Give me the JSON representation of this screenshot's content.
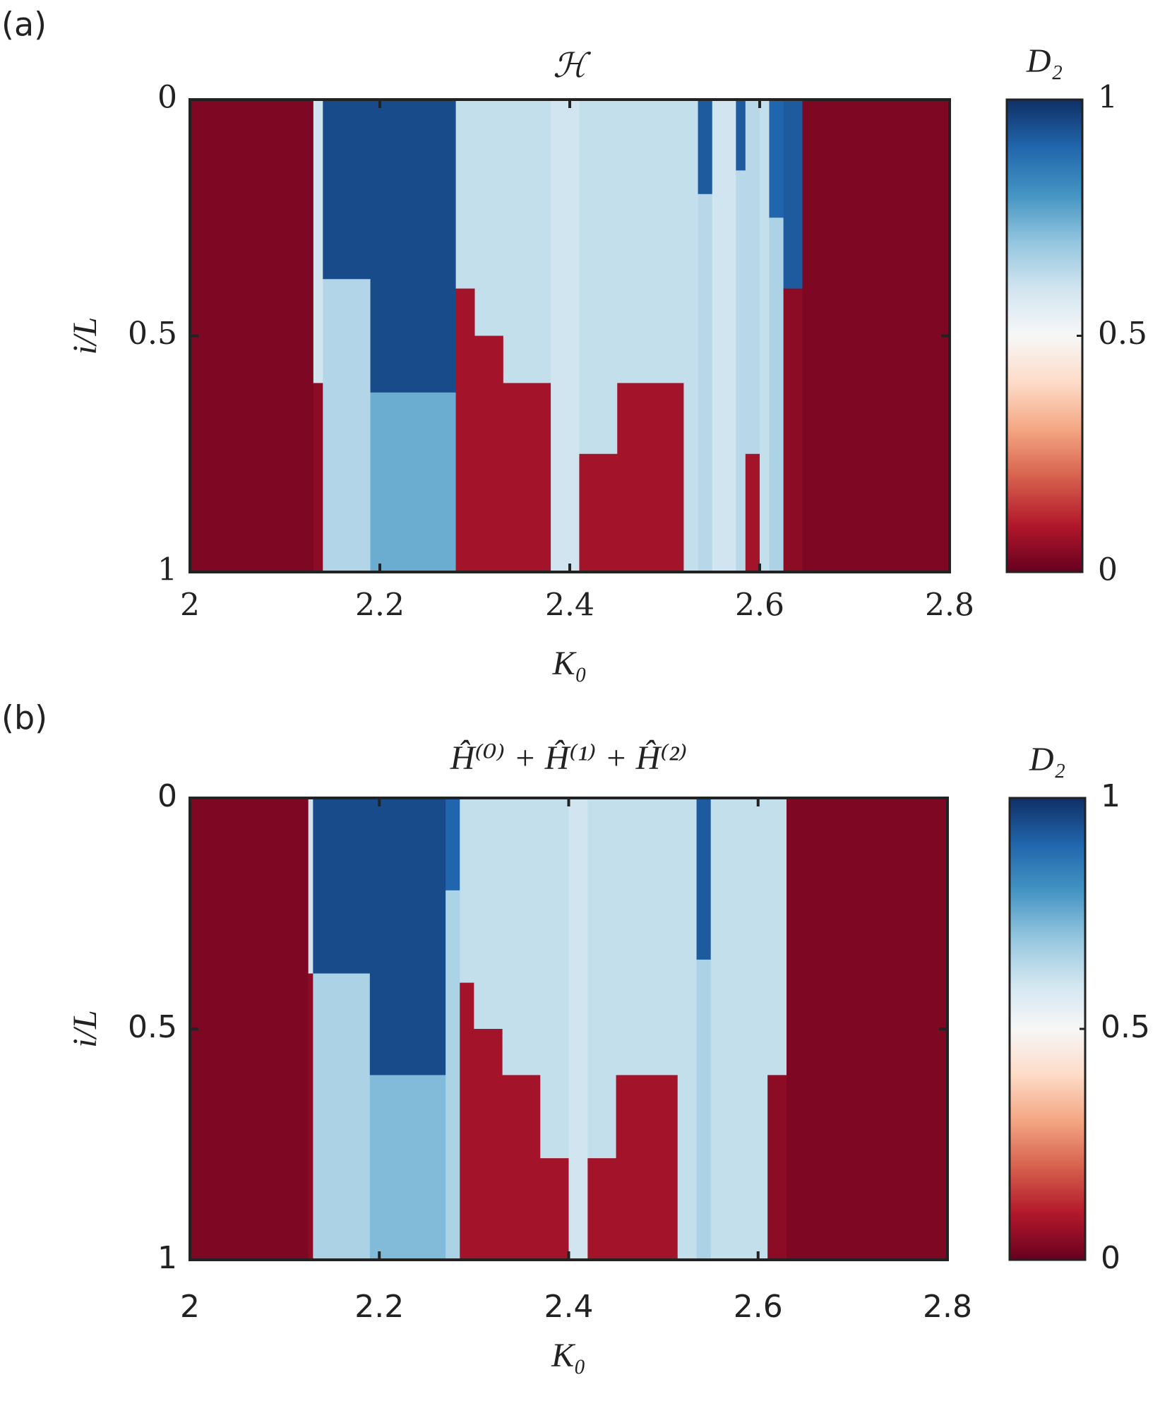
{
  "chart_data": [
    {
      "type": "heatmap",
      "panel_label": "(a)",
      "title": "ℋ",
      "x_label": "K₀",
      "y_label": "i/L",
      "colorbar_label": "D₂",
      "xlim": [
        2,
        2.8
      ],
      "xticks": [
        2,
        2.2,
        2.4,
        2.6,
        2.8
      ],
      "ylim": [
        0,
        1
      ],
      "y_reversed": true,
      "yticks": [
        0,
        0.5,
        1
      ],
      "clim": [
        0,
        1
      ],
      "cticks": [
        0,
        0.5,
        1
      ],
      "colormap": [
        "#67001f",
        "#b2182b",
        "#d6604d",
        "#f4a582",
        "#fddbc7",
        "#f7f7f7",
        "#d1e5f0",
        "#92c5de",
        "#4393c3",
        "#2166ac",
        "#0f2f66"
      ],
      "cells": [
        {
          "x": [
            2,
            2.13
          ],
          "y": [
            0,
            1
          ],
          "value": 0.03
        },
        {
          "x": [
            2.13,
            2.14
          ],
          "y": [
            0,
            0.6
          ],
          "value": 0.6
        },
        {
          "x": [
            2.13,
            2.14
          ],
          "y": [
            0.6,
            1
          ],
          "value": 0.05
        },
        {
          "x": [
            2.14,
            2.19
          ],
          "y": [
            0,
            0.38
          ],
          "value": 0.95
        },
        {
          "x": [
            2.14,
            2.19
          ],
          "y": [
            0.38,
            1
          ],
          "value": 0.65
        },
        {
          "x": [
            2.19,
            2.28
          ],
          "y": [
            0,
            0.62
          ],
          "value": 0.95
        },
        {
          "x": [
            2.19,
            2.28
          ],
          "y": [
            0.62,
            1
          ],
          "value": 0.75
        },
        {
          "x": [
            2.28,
            2.3
          ],
          "y": [
            0,
            0.4
          ],
          "value": 0.62
        },
        {
          "x": [
            2.28,
            2.3
          ],
          "y": [
            0.4,
            1
          ],
          "value": 0.08
        },
        {
          "x": [
            2.3,
            2.33
          ],
          "y": [
            0,
            0.5
          ],
          "value": 0.62
        },
        {
          "x": [
            2.3,
            2.33
          ],
          "y": [
            0.5,
            1
          ],
          "value": 0.08
        },
        {
          "x": [
            2.33,
            2.38
          ],
          "y": [
            0,
            0.6
          ],
          "value": 0.62
        },
        {
          "x": [
            2.33,
            2.38
          ],
          "y": [
            0.6,
            1
          ],
          "value": 0.08
        },
        {
          "x": [
            2.38,
            2.41
          ],
          "y": [
            0,
            1
          ],
          "value": 0.6
        },
        {
          "x": [
            2.41,
            2.45
          ],
          "y": [
            0,
            0.75
          ],
          "value": 0.62
        },
        {
          "x": [
            2.41,
            2.45
          ],
          "y": [
            0.75,
            1
          ],
          "value": 0.08
        },
        {
          "x": [
            2.45,
            2.52
          ],
          "y": [
            0,
            0.6
          ],
          "value": 0.62
        },
        {
          "x": [
            2.45,
            2.52
          ],
          "y": [
            0.6,
            1
          ],
          "value": 0.08
        },
        {
          "x": [
            2.52,
            2.535
          ],
          "y": [
            0,
            1
          ],
          "value": 0.62
        },
        {
          "x": [
            2.535,
            2.55
          ],
          "y": [
            0,
            0.2
          ],
          "value": 0.92
        },
        {
          "x": [
            2.535,
            2.55
          ],
          "y": [
            0.2,
            1
          ],
          "value": 0.64
        },
        {
          "x": [
            2.55,
            2.575
          ],
          "y": [
            0,
            1
          ],
          "value": 0.6
        },
        {
          "x": [
            2.575,
            2.585
          ],
          "y": [
            0,
            0.15
          ],
          "value": 0.92
        },
        {
          "x": [
            2.575,
            2.585
          ],
          "y": [
            0.15,
            1
          ],
          "value": 0.64
        },
        {
          "x": [
            2.585,
            2.6
          ],
          "y": [
            0,
            0.75
          ],
          "value": 0.64
        },
        {
          "x": [
            2.585,
            2.6
          ],
          "y": [
            0.75,
            1
          ],
          "value": 0.08
        },
        {
          "x": [
            2.6,
            2.61
          ],
          "y": [
            0,
            1
          ],
          "value": 0.62
        },
        {
          "x": [
            2.61,
            2.625
          ],
          "y": [
            0,
            0.25
          ],
          "value": 0.9
        },
        {
          "x": [
            2.61,
            2.625
          ],
          "y": [
            0.25,
            1
          ],
          "value": 0.66
        },
        {
          "x": [
            2.625,
            2.645
          ],
          "y": [
            0,
            0.4
          ],
          "value": 0.92
        },
        {
          "x": [
            2.625,
            2.645
          ],
          "y": [
            0.4,
            1
          ],
          "value": 0.05
        },
        {
          "x": [
            2.645,
            2.8
          ],
          "y": [
            0,
            1
          ],
          "value": 0.03
        }
      ]
    },
    {
      "type": "heatmap",
      "panel_label": "(b)",
      "title": "Ĥ⁽⁰⁾ + Ĥ⁽¹⁾ + Ĥ⁽²⁾",
      "x_label": "K₀",
      "y_label": "i/L",
      "colorbar_label": "D₂",
      "xlim": [
        2,
        2.8
      ],
      "xticks": [
        2,
        2.2,
        2.4,
        2.6,
        2.8
      ],
      "ylim": [
        0,
        1
      ],
      "y_reversed": true,
      "yticks": [
        0,
        0.5,
        1
      ],
      "clim": [
        0,
        1
      ],
      "cticks": [
        0,
        0.5,
        1
      ],
      "colormap": [
        "#67001f",
        "#b2182b",
        "#d6604d",
        "#f4a582",
        "#fddbc7",
        "#f7f7f7",
        "#d1e5f0",
        "#92c5de",
        "#4393c3",
        "#2166ac",
        "#0f2f66"
      ],
      "cells": [
        {
          "x": [
            2,
            2.125
          ],
          "y": [
            0,
            1
          ],
          "value": 0.03
        },
        {
          "x": [
            2.125,
            2.13
          ],
          "y": [
            0,
            0.38
          ],
          "value": 0.6
        },
        {
          "x": [
            2.125,
            2.13
          ],
          "y": [
            0.38,
            1
          ],
          "value": 0.05
        },
        {
          "x": [
            2.13,
            2.19
          ],
          "y": [
            0,
            0.38
          ],
          "value": 0.95
        },
        {
          "x": [
            2.13,
            2.19
          ],
          "y": [
            0.38,
            1
          ],
          "value": 0.66
        },
        {
          "x": [
            2.19,
            2.27
          ],
          "y": [
            0,
            0.6
          ],
          "value": 0.95
        },
        {
          "x": [
            2.19,
            2.27
          ],
          "y": [
            0.6,
            1
          ],
          "value": 0.72
        },
        {
          "x": [
            2.27,
            2.285
          ],
          "y": [
            0,
            0.2
          ],
          "value": 0.9
        },
        {
          "x": [
            2.27,
            2.285
          ],
          "y": [
            0.2,
            1
          ],
          "value": 0.66
        },
        {
          "x": [
            2.285,
            2.3
          ],
          "y": [
            0,
            0.4
          ],
          "value": 0.62
        },
        {
          "x": [
            2.285,
            2.3
          ],
          "y": [
            0.4,
            1
          ],
          "value": 0.08
        },
        {
          "x": [
            2.3,
            2.33
          ],
          "y": [
            0,
            0.5
          ],
          "value": 0.62
        },
        {
          "x": [
            2.3,
            2.33
          ],
          "y": [
            0.5,
            1
          ],
          "value": 0.08
        },
        {
          "x": [
            2.33,
            2.37
          ],
          "y": [
            0,
            0.6
          ],
          "value": 0.62
        },
        {
          "x": [
            2.33,
            2.37
          ],
          "y": [
            0.6,
            1
          ],
          "value": 0.08
        },
        {
          "x": [
            2.37,
            2.4
          ],
          "y": [
            0,
            0.78
          ],
          "value": 0.62
        },
        {
          "x": [
            2.37,
            2.4
          ],
          "y": [
            0.78,
            1
          ],
          "value": 0.08
        },
        {
          "x": [
            2.4,
            2.42
          ],
          "y": [
            0,
            1
          ],
          "value": 0.6
        },
        {
          "x": [
            2.42,
            2.45
          ],
          "y": [
            0,
            0.78
          ],
          "value": 0.62
        },
        {
          "x": [
            2.42,
            2.45
          ],
          "y": [
            0.78,
            1
          ],
          "value": 0.08
        },
        {
          "x": [
            2.45,
            2.515
          ],
          "y": [
            0,
            0.6
          ],
          "value": 0.62
        },
        {
          "x": [
            2.45,
            2.515
          ],
          "y": [
            0.6,
            1
          ],
          "value": 0.08
        },
        {
          "x": [
            2.515,
            2.535
          ],
          "y": [
            0,
            1
          ],
          "value": 0.62
        },
        {
          "x": [
            2.535,
            2.55
          ],
          "y": [
            0,
            0.35
          ],
          "value": 0.92
        },
        {
          "x": [
            2.535,
            2.55
          ],
          "y": [
            0.35,
            1
          ],
          "value": 0.66
        },
        {
          "x": [
            2.55,
            2.61
          ],
          "y": [
            0,
            1
          ],
          "value": 0.62
        },
        {
          "x": [
            2.61,
            2.63
          ],
          "y": [
            0,
            0.6
          ],
          "value": 0.62
        },
        {
          "x": [
            2.61,
            2.63
          ],
          "y": [
            0.6,
            1
          ],
          "value": 0.05
        },
        {
          "x": [
            2.63,
            2.8
          ],
          "y": [
            0,
            1
          ],
          "value": 0.03
        }
      ]
    }
  ]
}
